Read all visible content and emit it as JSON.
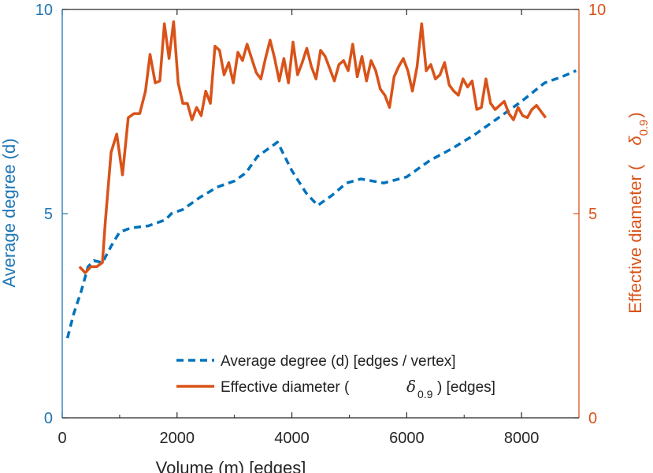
{
  "colors": {
    "left_axis": "#1f77b4",
    "right_axis": "#d95319",
    "avg_line": "#0072bd",
    "diam_line": "#d95319",
    "axis_black": "#262626"
  },
  "chart_data": {
    "type": "line",
    "xlabel": "Volume (m) [edges]",
    "ylabel_left": "Average degree (d)",
    "ylabel_right_prefix": "Effective diameter (",
    "ylabel_right_symbol": "δ",
    "ylabel_right_sub": "0.9",
    "ylabel_right_suffix": ")",
    "xlim": [
      0,
      9000
    ],
    "ylim_left": [
      0,
      10
    ],
    "ylim_right": [
      0,
      10
    ],
    "x_ticks": [
      0,
      2000,
      4000,
      6000,
      8000
    ],
    "x_tick_labels": [
      "0",
      "2000",
      "4000",
      "6000",
      "8000"
    ],
    "y_left_ticks": [
      0,
      5,
      10
    ],
    "y_left_tick_labels": [
      "0",
      "5",
      "10"
    ],
    "y_right_ticks": [
      0,
      5,
      10
    ],
    "y_right_tick_labels": [
      "0",
      "5",
      "10"
    ],
    "legend": {
      "position": "bottom-center",
      "entries": [
        {
          "label": "Average degree (d) [edges / vertex]",
          "style": "dashed"
        },
        {
          "label_prefix": "Effective diameter (",
          "symbol": "δ",
          "sub": "0.9",
          "label_suffix": ") [edges]",
          "style": "solid"
        }
      ]
    },
    "series": [
      {
        "name": "Average degree (d) [edges / vertex]",
        "axis": "left",
        "style": "dashed",
        "points": [
          [
            90,
            1.95
          ],
          [
            200,
            2.55
          ],
          [
            330,
            3.1
          ],
          [
            450,
            3.7
          ],
          [
            550,
            3.85
          ],
          [
            700,
            3.8
          ],
          [
            850,
            4.2
          ],
          [
            1000,
            4.55
          ],
          [
            1200,
            4.65
          ],
          [
            1500,
            4.7
          ],
          [
            1700,
            4.8
          ],
          [
            1800,
            4.85
          ],
          [
            1900,
            5.0
          ],
          [
            2100,
            5.1
          ],
          [
            2400,
            5.4
          ],
          [
            2700,
            5.65
          ],
          [
            3000,
            5.8
          ],
          [
            3200,
            6.0
          ],
          [
            3400,
            6.4
          ],
          [
            3600,
            6.6
          ],
          [
            3750,
            6.75
          ],
          [
            4000,
            6.05
          ],
          [
            4250,
            5.5
          ],
          [
            4450,
            5.2
          ],
          [
            4700,
            5.45
          ],
          [
            4950,
            5.75
          ],
          [
            5200,
            5.85
          ],
          [
            5600,
            5.75
          ],
          [
            6000,
            5.9
          ],
          [
            6400,
            6.3
          ],
          [
            6800,
            6.6
          ],
          [
            7200,
            6.95
          ],
          [
            7600,
            7.35
          ],
          [
            8000,
            7.75
          ],
          [
            8400,
            8.2
          ],
          [
            8700,
            8.35
          ],
          [
            8950,
            8.5
          ]
        ]
      },
      {
        "name": "Effective diameter (δ0.9) [edges]",
        "axis": "right",
        "style": "solid",
        "points": [
          [
            300,
            3.7
          ],
          [
            400,
            3.55
          ],
          [
            500,
            3.7
          ],
          [
            600,
            3.7
          ],
          [
            700,
            3.8
          ],
          [
            750,
            4.8
          ],
          [
            850,
            6.5
          ],
          [
            950,
            6.95
          ],
          [
            1050,
            5.95
          ],
          [
            1150,
            7.35
          ],
          [
            1250,
            7.45
          ],
          [
            1350,
            7.45
          ],
          [
            1450,
            8.0
          ],
          [
            1530,
            8.9
          ],
          [
            1620,
            8.2
          ],
          [
            1700,
            8.25
          ],
          [
            1780,
            9.65
          ],
          [
            1860,
            8.8
          ],
          [
            1940,
            9.7
          ],
          [
            2020,
            8.2
          ],
          [
            2100,
            7.7
          ],
          [
            2180,
            7.7
          ],
          [
            2260,
            7.3
          ],
          [
            2340,
            7.6
          ],
          [
            2420,
            7.4
          ],
          [
            2500,
            8.0
          ],
          [
            2580,
            7.7
          ],
          [
            2660,
            9.1
          ],
          [
            2740,
            9.0
          ],
          [
            2820,
            8.4
          ],
          [
            2900,
            8.7
          ],
          [
            2980,
            8.2
          ],
          [
            3060,
            8.95
          ],
          [
            3140,
            8.75
          ],
          [
            3220,
            9.15
          ],
          [
            3300,
            8.8
          ],
          [
            3380,
            8.45
          ],
          [
            3460,
            8.3
          ],
          [
            3540,
            8.8
          ],
          [
            3620,
            9.25
          ],
          [
            3700,
            8.8
          ],
          [
            3780,
            8.25
          ],
          [
            3860,
            8.8
          ],
          [
            3940,
            8.2
          ],
          [
            4020,
            9.2
          ],
          [
            4100,
            8.4
          ],
          [
            4180,
            8.7
          ],
          [
            4260,
            9.05
          ],
          [
            4340,
            8.6
          ],
          [
            4420,
            8.3
          ],
          [
            4500,
            9.0
          ],
          [
            4580,
            8.85
          ],
          [
            4660,
            8.55
          ],
          [
            4740,
            8.25
          ],
          [
            4820,
            8.65
          ],
          [
            4900,
            8.75
          ],
          [
            4980,
            8.5
          ],
          [
            5060,
            9.15
          ],
          [
            5140,
            8.35
          ],
          [
            5220,
            8.85
          ],
          [
            5300,
            8.25
          ],
          [
            5380,
            8.75
          ],
          [
            5460,
            8.5
          ],
          [
            5540,
            8.05
          ],
          [
            5620,
            7.9
          ],
          [
            5700,
            7.6
          ],
          [
            5780,
            8.35
          ],
          [
            5860,
            8.6
          ],
          [
            5940,
            8.8
          ],
          [
            6020,
            8.5
          ],
          [
            6100,
            8.0
          ],
          [
            6180,
            8.6
          ],
          [
            6260,
            9.65
          ],
          [
            6340,
            8.5
          ],
          [
            6420,
            8.65
          ],
          [
            6500,
            8.3
          ],
          [
            6580,
            8.4
          ],
          [
            6660,
            8.7
          ],
          [
            6740,
            8.15
          ],
          [
            6820,
            8.0
          ],
          [
            6900,
            7.9
          ],
          [
            6980,
            8.3
          ],
          [
            7060,
            8.1
          ],
          [
            7140,
            8.25
          ],
          [
            7220,
            7.55
          ],
          [
            7300,
            7.6
          ],
          [
            7380,
            8.3
          ],
          [
            7460,
            7.7
          ],
          [
            7540,
            7.55
          ],
          [
            7620,
            7.65
          ],
          [
            7700,
            7.75
          ],
          [
            7780,
            7.45
          ],
          [
            7860,
            7.3
          ],
          [
            7940,
            7.6
          ],
          [
            8020,
            7.4
          ],
          [
            8100,
            7.35
          ],
          [
            8180,
            7.55
          ],
          [
            8260,
            7.65
          ],
          [
            8340,
            7.5
          ],
          [
            8420,
            7.35
          ]
        ]
      }
    ]
  }
}
